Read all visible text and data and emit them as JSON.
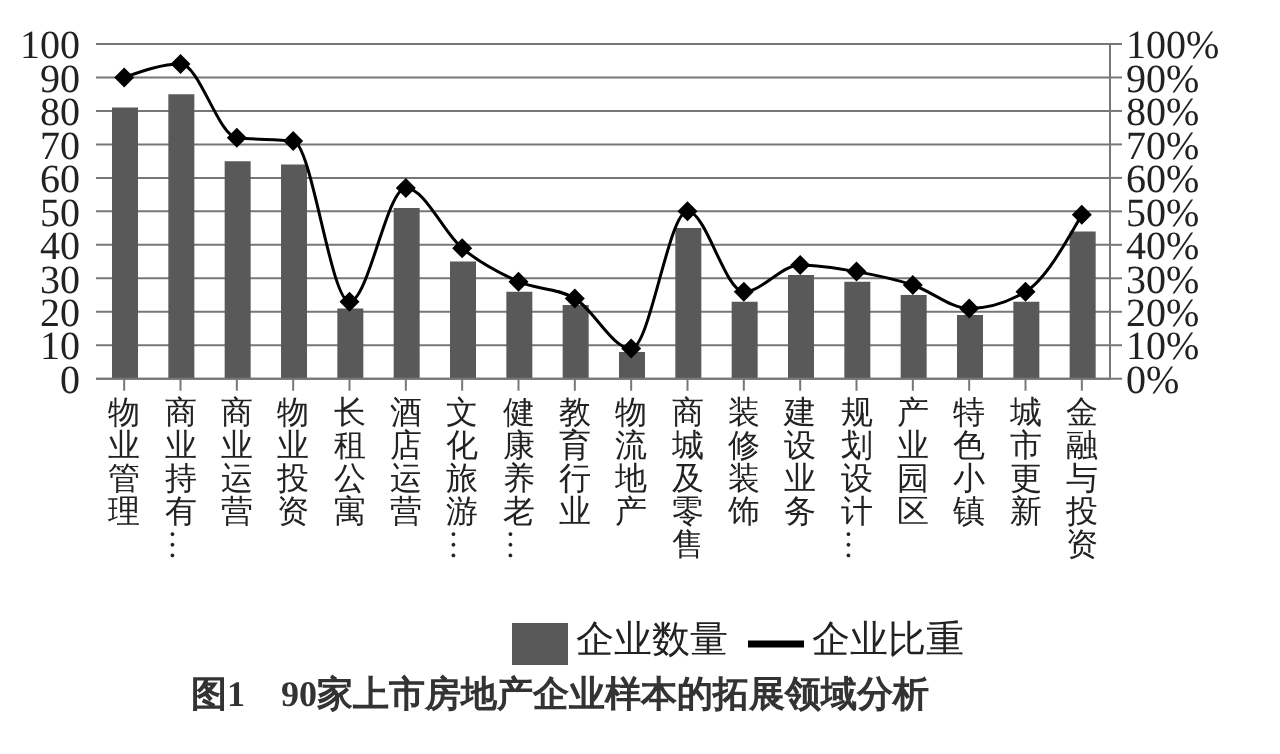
{
  "chart_data": {
    "type": "bar",
    "title": "图1　90家上市房地产企业样本的拓展领域分析",
    "categories": [
      "物业管理",
      "商业持有…",
      "商业运营",
      "物业投资",
      "长租公寓",
      "酒店运营",
      "文化旅游…",
      "健康养老…",
      "教育行业",
      "物流地产",
      "商城及零售",
      "装修装饰",
      "建设业务",
      "规划设计…",
      "产业园区",
      "特色小镇",
      "城市更新",
      "金融与投资"
    ],
    "series": [
      {
        "name": "企业数量",
        "color": "#595959",
        "values": [
          81,
          85,
          65,
          64,
          21,
          51,
          35,
          26,
          22,
          8,
          45,
          23,
          31,
          29,
          25,
          19,
          23,
          44
        ]
      },
      {
        "name": "企业比重",
        "type": "line",
        "axis": "y2",
        "color": "#000000",
        "marker": "diamond",
        "values": [
          90,
          94,
          72,
          71,
          23,
          57,
          39,
          29,
          24,
          9,
          50,
          26,
          34,
          32,
          28,
          21,
          26,
          49
        ]
      }
    ],
    "ylim": [
      0,
      100
    ],
    "yticks": [
      0,
      10,
      20,
      30,
      40,
      50,
      60,
      70,
      80,
      90,
      100
    ],
    "y2lim": [
      0,
      100
    ],
    "y2ticks": [
      {
        "value": 0,
        "label": "0%"
      },
      {
        "value": 10,
        "label": "10%"
      },
      {
        "value": 20,
        "label": "20%"
      },
      {
        "value": 30,
        "label": "30%"
      },
      {
        "value": 40,
        "label": "40%"
      },
      {
        "value": 50,
        "label": "50%"
      },
      {
        "value": 60,
        "label": "60%"
      },
      {
        "value": 70,
        "label": "70%"
      },
      {
        "value": 80,
        "label": "80%"
      },
      {
        "value": 90,
        "label": "90%"
      },
      {
        "value": 100,
        "label": "100%"
      }
    ],
    "grid": "y",
    "legend": "bottom"
  }
}
